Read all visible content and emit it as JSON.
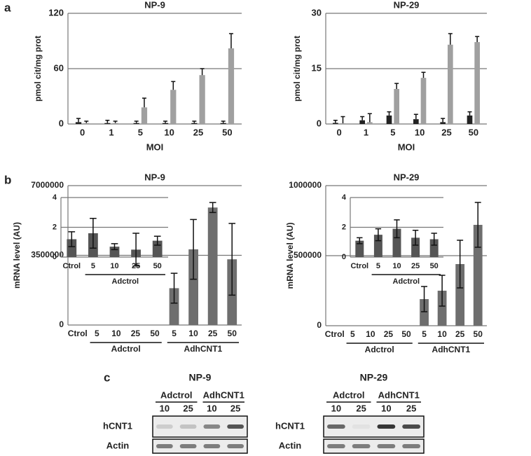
{
  "chart_data": [
    {
      "type": "bar",
      "title": "NP-9",
      "ylabel": "pmol cit/mg prot",
      "xlabel": "MOI",
      "categories": [
        "0",
        "1",
        "5",
        "10",
        "25",
        "50"
      ],
      "series": [
        {
          "color": "#222222",
          "values": [
            2,
            1,
            1,
            1,
            1,
            1
          ],
          "errors": [
            4,
            3,
            2,
            2,
            2,
            2
          ]
        },
        {
          "color": "#a0a0a0",
          "values": [
            1,
            1,
            18,
            37,
            53,
            82
          ],
          "errors": [
            2,
            2,
            10,
            9,
            7,
            16
          ]
        }
      ],
      "error_bars": "upper",
      "ylim": [
        0,
        120
      ],
      "yticks": [
        0,
        60,
        120
      ],
      "grid": true
    },
    {
      "type": "bar",
      "title": "NP-29",
      "ylabel": "pmol cit/mg prot",
      "xlabel": "MOI",
      "categories": [
        "0",
        "1",
        "5",
        "10",
        "25",
        "50"
      ],
      "series": [
        {
          "color": "#222222",
          "values": [
            0.3,
            1,
            2.3,
            1.3,
            0.5,
            2.3
          ],
          "errors": [
            0.7,
            1,
            1,
            1.3,
            1,
            1
          ]
        },
        {
          "color": "#a0a0a0",
          "values": [
            0.2,
            0.5,
            9.5,
            12.5,
            21.5,
            22.2
          ],
          "errors": [
            1.8,
            2.3,
            1.5,
            1.5,
            3,
            1.5
          ]
        }
      ],
      "error_bars": "upper",
      "ylim": [
        0,
        30
      ],
      "yticks": [
        0,
        15,
        30
      ],
      "grid": true
    },
    {
      "type": "bar",
      "title": "NP-9",
      "ylabel": "mRNA level (AU)",
      "categories": [
        "Ctrol",
        "5",
        "10",
        "25",
        "50",
        "5",
        "10",
        "25",
        "50"
      ],
      "category_groups": [
        null,
        "Adctrol",
        "Adctrol",
        "Adctrol",
        "Adctrol",
        "AdhCNT1",
        "AdhCNT1",
        "AdhCNT1",
        "AdhCNT1"
      ],
      "series": [
        {
          "color": "#6e6e6e",
          "values": [
            0,
            0,
            0,
            0,
            0,
            1850000,
            3800000,
            5900000,
            3300000
          ],
          "errors": [
            null,
            null,
            null,
            null,
            null,
            750000,
            1500000,
            250000,
            1800000
          ]
        }
      ],
      "error_bars": "both",
      "ylim": [
        0,
        7000000
      ],
      "yticks": [
        0,
        3500000,
        7000000
      ],
      "grid": true
    },
    {
      "type": "bar",
      "categories": [
        "Ctrol",
        "5",
        "10",
        "25",
        "50"
      ],
      "category_groups": [
        null,
        "Adctrol",
        "Adctrol",
        "Adctrol",
        "Adctrol"
      ],
      "series": [
        {
          "color": "#555555",
          "values": [
            1.2,
            1.6,
            0.7,
            0.5,
            1.1
          ],
          "errors": [
            0.5,
            1.0,
            0.2,
            1.1,
            0.3
          ]
        }
      ],
      "error_bars": "both",
      "ylim": [
        0,
        4
      ],
      "yticks": [
        0,
        2,
        4
      ],
      "grid": true
    },
    {
      "type": "bar",
      "title": "NP-29",
      "ylabel": "mRNA level (AU)",
      "categories": [
        "Ctrol",
        "5",
        "10",
        "25",
        "50",
        "5",
        "10",
        "25",
        "50"
      ],
      "category_groups": [
        null,
        "Adctrol",
        "Adctrol",
        "Adctrol",
        "Adctrol",
        "AdhCNT1",
        "AdhCNT1",
        "AdhCNT1",
        "AdhCNT1"
      ],
      "series": [
        {
          "color": "#6e6e6e",
          "values": [
            0,
            0,
            0,
            0,
            0,
            190000,
            250000,
            440000,
            720000
          ],
          "errors": [
            null,
            null,
            null,
            null,
            null,
            90000,
            110000,
            170000,
            160000
          ]
        }
      ],
      "error_bars": "both",
      "ylim": [
        0,
        1000000
      ],
      "yticks": [
        0,
        500000,
        1000000
      ],
      "grid": true
    },
    {
      "type": "bar",
      "categories": [
        "Ctrol",
        "5",
        "10",
        "25",
        "50"
      ],
      "category_groups": [
        null,
        "Adctrol",
        "Adctrol",
        "Adctrol",
        "Adctrol"
      ],
      "series": [
        {
          "color": "#555555",
          "values": [
            1.1,
            1.5,
            1.9,
            1.3,
            1.2
          ],
          "errors": [
            0.2,
            0.4,
            0.6,
            0.5,
            0.4
          ]
        }
      ],
      "error_bars": "both",
      "ylim": [
        0,
        4
      ],
      "yticks": [
        0,
        2,
        4
      ],
      "grid": true
    }
  ],
  "panel_labels": [
    "a",
    "b",
    "c"
  ],
  "blots": [
    {
      "title": "NP-9",
      "groups": [
        "Adctrol",
        "AdhCNT1"
      ],
      "lanes": [
        10,
        25,
        10,
        25
      ],
      "rows": [
        "hCNT1",
        "Actin"
      ]
    },
    {
      "title": "NP-29",
      "groups": [
        "Adctrol",
        "AdhCNT1"
      ],
      "lanes": [
        10,
        25,
        10,
        25
      ],
      "rows": [
        "hCNT1",
        "Actin"
      ]
    }
  ]
}
